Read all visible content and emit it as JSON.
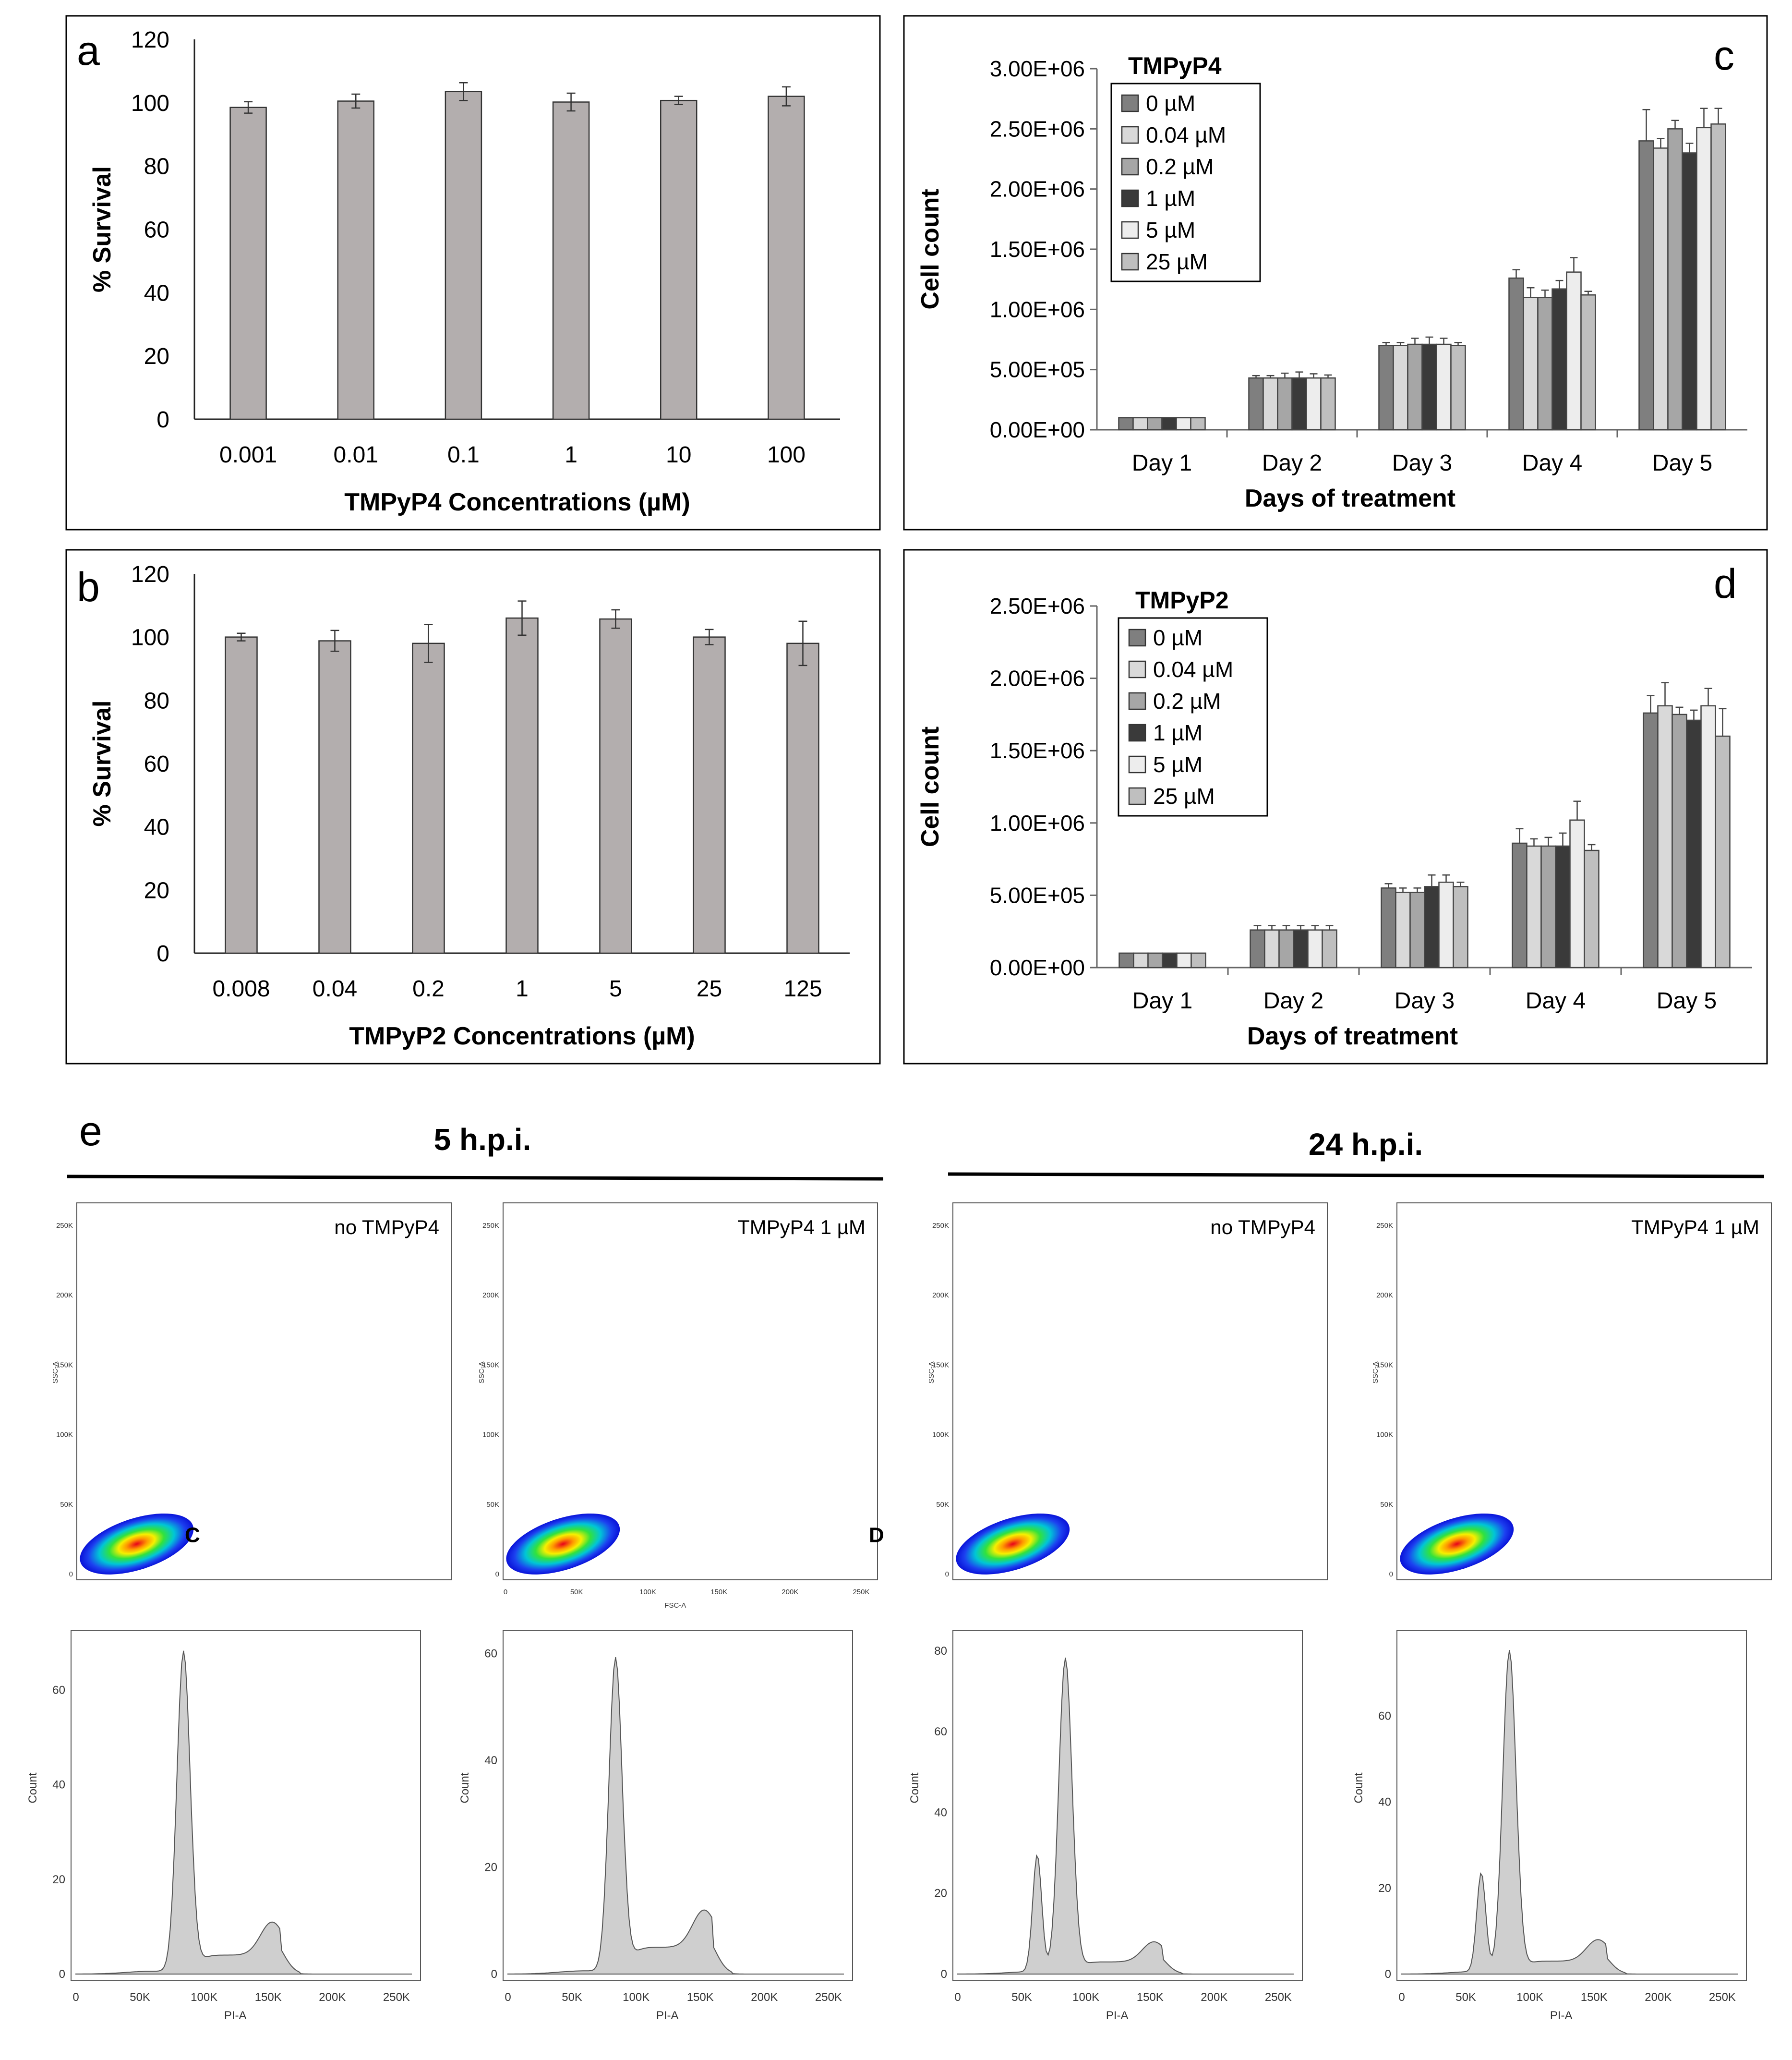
{
  "panel_letters": {
    "a": "a",
    "b": "b",
    "c": "c",
    "d": "d",
    "e": "e"
  },
  "chart_data": [
    {
      "id": "a",
      "type": "bar",
      "title": "",
      "xlabel": "TMPyP4 Concentrations (µM)",
      "ylabel": "% Survival",
      "ylim": [
        0,
        120
      ],
      "yticks": [
        0,
        20,
        40,
        60,
        80,
        100,
        120
      ],
      "categories": [
        "0.001",
        "0.01",
        "0.1",
        "1",
        "10",
        "100"
      ],
      "values": [
        98.5,
        100.5,
        103.5,
        100.2,
        100.7,
        102
      ],
      "errors": [
        1.8,
        2.2,
        2.8,
        2.8,
        1.3,
        3.0
      ],
      "color": "#b3aeae"
    },
    {
      "id": "b",
      "type": "bar",
      "title": "",
      "xlabel": "TMPyP2 Concentrations (µM)",
      "ylabel": "% Survival",
      "ylim": [
        0,
        120
      ],
      "yticks": [
        0,
        20,
        40,
        60,
        80,
        100,
        120
      ],
      "categories": [
        "0.008",
        "0.04",
        "0.2",
        "1",
        "5",
        "25",
        "125"
      ],
      "values": [
        100,
        98.8,
        98,
        106,
        105.7,
        100,
        98
      ],
      "errors": [
        1.2,
        3.3,
        6.0,
        5.4,
        2.9,
        2.4,
        7.0
      ],
      "color": "#b3aeae"
    },
    {
      "id": "c",
      "type": "bar",
      "title": "",
      "legend_title": "TMPyP4",
      "xlabel": "Days of treatment",
      "ylabel": "Cell count",
      "ylim": [
        0,
        3000000
      ],
      "yticks": [
        0,
        500000,
        1000000,
        1500000,
        2000000,
        2500000,
        3000000
      ],
      "ytick_labels": [
        "0.00E+00",
        "5.00E+05",
        "1.00E+06",
        "1.50E+06",
        "2.00E+06",
        "2.50E+06",
        "3.00E+06"
      ],
      "categories": [
        "Day 1",
        "Day 2",
        "Day 3",
        "Day 4",
        "Day 5"
      ],
      "series": [
        {
          "name": "0 µM",
          "color": "#7f7f7f",
          "values": [
            100000,
            430000,
            700000,
            1260000,
            2400000
          ],
          "errors": [
            0,
            20000,
            25000,
            70000,
            260000
          ]
        },
        {
          "name": "0.04 µM",
          "color": "#d9d9d9",
          "values": [
            100000,
            430000,
            700000,
            1100000,
            2340000
          ],
          "errors": [
            0,
            20000,
            25000,
            80000,
            80000
          ]
        },
        {
          "name": "0.2 µM",
          "color": "#a6a6a6",
          "values": [
            100000,
            430000,
            710000,
            1100000,
            2500000
          ],
          "errors": [
            0,
            40000,
            50000,
            60000,
            70000
          ]
        },
        {
          "name": "1 µM",
          "color": "#3a3a3a",
          "values": [
            100000,
            430000,
            710000,
            1170000,
            2300000
          ],
          "errors": [
            0,
            50000,
            60000,
            70000,
            80000
          ]
        },
        {
          "name": "5 µM",
          "color": "#ededed",
          "values": [
            100000,
            430000,
            710000,
            1310000,
            2510000
          ],
          "errors": [
            0,
            35000,
            50000,
            120000,
            160000
          ]
        },
        {
          "name": "25 µM",
          "color": "#bfbfbf",
          "values": [
            100000,
            430000,
            700000,
            1120000,
            2540000
          ],
          "errors": [
            0,
            25000,
            25000,
            30000,
            130000
          ]
        }
      ]
    },
    {
      "id": "d",
      "type": "bar",
      "title": "",
      "legend_title": "TMPyP2",
      "xlabel": "Days of treatment",
      "ylabel": "Cell count",
      "ylim": [
        0,
        2500000
      ],
      "yticks": [
        0,
        500000,
        1000000,
        1500000,
        2000000,
        2500000
      ],
      "ytick_labels": [
        "0.00E+00",
        "5.00E+05",
        "1.00E+06",
        "1.50E+06",
        "2.00E+06",
        "2.50E+06"
      ],
      "categories": [
        "Day 1",
        "Day 2",
        "Day 3",
        "Day 4",
        "Day 5"
      ],
      "series": [
        {
          "name": "0 µM",
          "color": "#7f7f7f",
          "values": [
            100000,
            260000,
            550000,
            860000,
            1760000
          ],
          "errors": [
            0,
            30000,
            30000,
            100000,
            120000
          ]
        },
        {
          "name": "0.04 µM",
          "color": "#d9d9d9",
          "values": [
            100000,
            260000,
            520000,
            840000,
            1810000
          ],
          "errors": [
            0,
            30000,
            30000,
            50000,
            160000
          ]
        },
        {
          "name": "0.2 µM",
          "color": "#a6a6a6",
          "values": [
            100000,
            260000,
            520000,
            840000,
            1750000
          ],
          "errors": [
            0,
            30000,
            30000,
            60000,
            50000
          ]
        },
        {
          "name": "1 µM",
          "color": "#3a3a3a",
          "values": [
            100000,
            260000,
            560000,
            840000,
            1710000
          ],
          "errors": [
            0,
            30000,
            80000,
            90000,
            70000
          ]
        },
        {
          "name": "5 µM",
          "color": "#ededed",
          "values": [
            100000,
            260000,
            590000,
            1020000,
            1810000
          ],
          "errors": [
            0,
            30000,
            50000,
            130000,
            120000
          ]
        },
        {
          "name": "25 µM",
          "color": "#bfbfbf",
          "values": [
            100000,
            260000,
            560000,
            810000,
            1600000
          ],
          "errors": [
            0,
            30000,
            30000,
            40000,
            190000
          ]
        }
      ]
    }
  ],
  "flow": {
    "groups": [
      {
        "label": "5 h.p.i."
      },
      {
        "label": "24 h.p.i."
      }
    ],
    "scatter": {
      "x_label": "FSC-A",
      "y_label": "SSC-A",
      "x_ticks": [
        "0",
        "50K",
        "100K",
        "150K",
        "200K",
        "250K"
      ],
      "y_ticks": [
        "0",
        "50K",
        "100K",
        "150K",
        "200K",
        "250K"
      ],
      "panels": [
        {
          "condition": "no TMPyP4",
          "marker": "C"
        },
        {
          "condition": "TMPyP4 1 µM",
          "marker": "D"
        },
        {
          "condition": "no TMPyP4",
          "marker": ""
        },
        {
          "condition": "TMPyP4 1 µM",
          "marker": ""
        }
      ]
    },
    "histograms": {
      "x_label": "PI-A",
      "y_label": "Count",
      "x_ticks": [
        "0",
        "50K",
        "100K",
        "150K",
        "200K",
        "250K"
      ],
      "panels": [
        {
          "yticks": [
            "0",
            "20",
            "40",
            "60"
          ],
          "ymax": 70,
          "g1_peak": 68,
          "early_peak": 0,
          "g2_level": 7,
          "sub_level": 4
        },
        {
          "yticks": [
            "0",
            "20",
            "40",
            "60"
          ],
          "ymax": 62,
          "g1_peak": 59,
          "early_peak": 0,
          "g2_level": 7,
          "sub_level": 5
        },
        {
          "yticks": [
            "0",
            "20",
            "40",
            "60",
            "80"
          ],
          "ymax": 82,
          "g1_peak": 78,
          "early_peak": 29,
          "g2_level": 5,
          "sub_level": 3
        },
        {
          "yticks": [
            "0",
            "20",
            "40",
            "60"
          ],
          "ymax": 77,
          "g1_peak": 75,
          "early_peak": 23,
          "g2_level": 5,
          "sub_level": 3
        }
      ]
    }
  }
}
